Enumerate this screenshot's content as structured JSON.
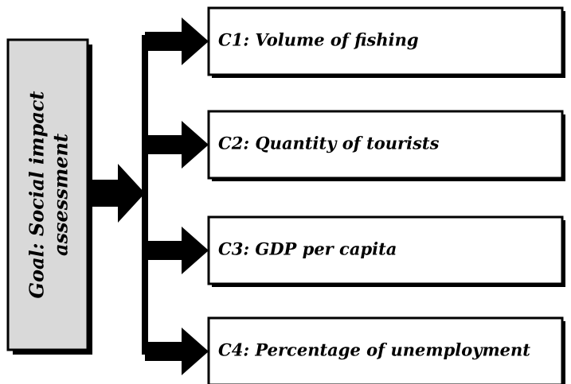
{
  "goal": {
    "lines": [
      "Goal: Social impact",
      "assessment"
    ]
  },
  "criteria": [
    {
      "label": "C1: Volume of fishing"
    },
    {
      "label": "C2: Quantity of tourists"
    },
    {
      "label": "C3: GDP per capita"
    },
    {
      "label": "C4: Percentage of unemployment"
    }
  ]
}
